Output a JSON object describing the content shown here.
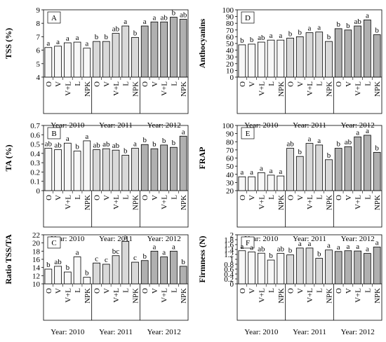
{
  "colors": {
    "bar_2010": "#f8f8f8",
    "bar_2011": "#d9d9d9",
    "bar_2012": "#b0b0b0",
    "bar_stroke": "#000000"
  },
  "chart_data": [
    {
      "type": "bar",
      "panel": "A",
      "ylabel": "TSS (%)",
      "ylim": [
        4,
        9
      ],
      "yticks": [
        "4",
        "5",
        "6",
        "7",
        "8",
        "9"
      ],
      "groups": [
        {
          "name": "Year: 2010",
          "categories": [
            "O",
            "V",
            "V+L",
            "L",
            "NPK"
          ],
          "values": [
            6.2,
            6.3,
            6.55,
            6.6,
            6.15
          ],
          "letters": [
            "a",
            "a",
            "a",
            "a",
            "a"
          ]
        },
        {
          "name": "Year: 2011",
          "categories": [
            "O",
            "V",
            "V+L",
            "L",
            "NPK"
          ],
          "values": [
            6.65,
            6.65,
            7.25,
            7.8,
            6.95
          ],
          "letters": [
            "b",
            "b",
            "ab",
            "a",
            "b"
          ]
        },
        {
          "name": "Year: 2012",
          "categories": [
            "O",
            "V",
            "V+L",
            "L",
            "NPK"
          ],
          "values": [
            7.8,
            8.1,
            8.1,
            8.45,
            8.3
          ],
          "letters": [
            "a",
            "a",
            "ab",
            "b",
            "ab"
          ]
        }
      ]
    },
    {
      "type": "bar",
      "panel": "B",
      "ylabel": "TA (%)",
      "ylim": [
        0,
        0.7
      ],
      "yticks": [
        "0",
        "0.1",
        "0.2",
        "0.3",
        "0.4",
        "0.5",
        "0.6",
        "0.7"
      ],
      "groups": [
        {
          "name": "Year: 2010",
          "categories": [
            "O",
            "V",
            "V+L",
            "L",
            "NPK"
          ],
          "values": [
            0.455,
            0.44,
            0.51,
            0.425,
            0.535
          ],
          "letters": [
            "ab",
            "ab",
            "a",
            "b",
            "a"
          ]
        },
        {
          "name": "Year: 2011",
          "categories": [
            "O",
            "V",
            "V+L",
            "L",
            "NPK"
          ],
          "values": [
            0.44,
            0.45,
            0.435,
            0.38,
            0.455
          ],
          "letters": [
            "ab",
            "ab",
            "ab",
            "b",
            "a"
          ]
        },
        {
          "name": "Year: 2012",
          "categories": [
            "O",
            "V",
            "V+L",
            "L",
            "NPK"
          ],
          "values": [
            0.495,
            0.45,
            0.49,
            0.465,
            0.585
          ],
          "letters": [
            "b",
            "b",
            "b",
            "b",
            "a"
          ]
        }
      ]
    },
    {
      "type": "bar",
      "panel": "C",
      "ylabel": "Ratio TSS/TA",
      "ylim": [
        10,
        22
      ],
      "yticks": [
        "10",
        "12",
        "14",
        "16",
        "18",
        "20",
        "22"
      ],
      "groups": [
        {
          "name": "Year: 2010",
          "categories": [
            "O",
            "V",
            "V+L",
            "L",
            "NPK"
          ],
          "values": [
            13.6,
            14.3,
            12.9,
            16.6,
            11.6
          ],
          "letters": [
            "b",
            "ab",
            "b",
            "a",
            "b"
          ]
        },
        {
          "name": "Year: 2011",
          "categories": [
            "O",
            "V",
            "V+L",
            "L",
            "NPK"
          ],
          "values": [
            15.1,
            14.8,
            16.9,
            20.4,
            15.3
          ],
          "letters": [
            "c",
            "c",
            "bc",
            "a",
            "c"
          ]
        },
        {
          "name": "Year: 2012",
          "categories": [
            "O",
            "V",
            "V+L",
            "L",
            "NPK"
          ],
          "values": [
            15.7,
            18.0,
            16.6,
            18.0,
            14.3
          ],
          "letters": [
            "b",
            "a",
            "a",
            "a",
            "b"
          ]
        }
      ]
    },
    {
      "type": "bar",
      "panel": "D",
      "ylabel": "Anthocyanins",
      "ylim": [
        0,
        100
      ],
      "yticks": [
        "0",
        "10",
        "20",
        "30",
        "40",
        "50",
        "60",
        "70",
        "80",
        "90",
        "100"
      ],
      "groups": [
        {
          "name": "Year: 2010",
          "categories": [
            "O",
            "V",
            "V+L",
            "L",
            "NPK"
          ],
          "values": [
            48,
            49,
            52,
            55,
            55
          ],
          "letters": [
            "b",
            "b",
            "ab",
            "a",
            "a"
          ]
        },
        {
          "name": "Year: 2011",
          "categories": [
            "O",
            "V",
            "V+L",
            "L",
            "NPK"
          ],
          "values": [
            58,
            60,
            66,
            67,
            53
          ],
          "letters": [
            "b",
            "b",
            "a",
            "a",
            "b"
          ]
        },
        {
          "name": "Year: 2012",
          "categories": [
            "O",
            "V",
            "V+L",
            "L",
            "NPK"
          ],
          "values": [
            72,
            70,
            76,
            85,
            63
          ],
          "letters": [
            "b",
            "b",
            "ab",
            "a",
            "b"
          ]
        }
      ]
    },
    {
      "type": "bar",
      "panel": "E",
      "ylabel": "FRAP",
      "ylim": [
        20,
        100
      ],
      "yticks": [
        "20",
        "30",
        "40",
        "50",
        "60",
        "70",
        "80",
        "90",
        "100"
      ],
      "groups": [
        {
          "name": "Year: 2010",
          "categories": [
            "O",
            "V",
            "V+L",
            "L",
            "NPK"
          ],
          "values": [
            37,
            37,
            42,
            39,
            38
          ],
          "letters": [
            "a",
            "a",
            "a",
            "a",
            "a"
          ]
        },
        {
          "name": "Year: 2011",
          "categories": [
            "O",
            "V",
            "V+L",
            "L",
            "NPK"
          ],
          "values": [
            72,
            62,
            78,
            76,
            58
          ],
          "letters": [
            "ab",
            "b",
            "a",
            "a",
            "b"
          ]
        },
        {
          "name": "Year: 2012",
          "categories": [
            "O",
            "V",
            "V+L",
            "L",
            "NPK"
          ],
          "values": [
            72,
            74,
            86,
            88,
            67
          ],
          "letters": [
            "b",
            "ab",
            "a",
            "a",
            "b"
          ]
        }
      ]
    },
    {
      "type": "bar",
      "panel": "F",
      "ylabel": "Firmness (N)",
      "ylim": [
        0,
        2
      ],
      "yticks": [
        "0",
        "0.2",
        "0.4",
        "0.6",
        "0.8",
        "1",
        "1.2",
        "1.4",
        "1.6",
        "1.8",
        "2"
      ],
      "groups": [
        {
          "name": "Year: 2010",
          "categories": [
            "O",
            "V",
            "V+L",
            "L",
            "NPK"
          ],
          "values": [
            1.35,
            1.3,
            1.25,
            0.97,
            1.24
          ],
          "letters": [
            "a",
            "a",
            "ab",
            "b",
            "ab"
          ]
        },
        {
          "name": "Year: 2011",
          "categories": [
            "O",
            "V",
            "V+L",
            "L",
            "NPK"
          ],
          "values": [
            1.18,
            1.46,
            1.46,
            1.04,
            1.38
          ],
          "letters": [
            "b",
            "a",
            "a",
            "b",
            "a"
          ]
        },
        {
          "name": "Year: 2012",
          "categories": [
            "O",
            "V",
            "V+L",
            "L",
            "NPK"
          ],
          "values": [
            1.32,
            1.35,
            1.34,
            1.24,
            1.5
          ],
          "letters": [
            "a",
            "a",
            "a",
            "a",
            "a"
          ]
        }
      ]
    }
  ]
}
